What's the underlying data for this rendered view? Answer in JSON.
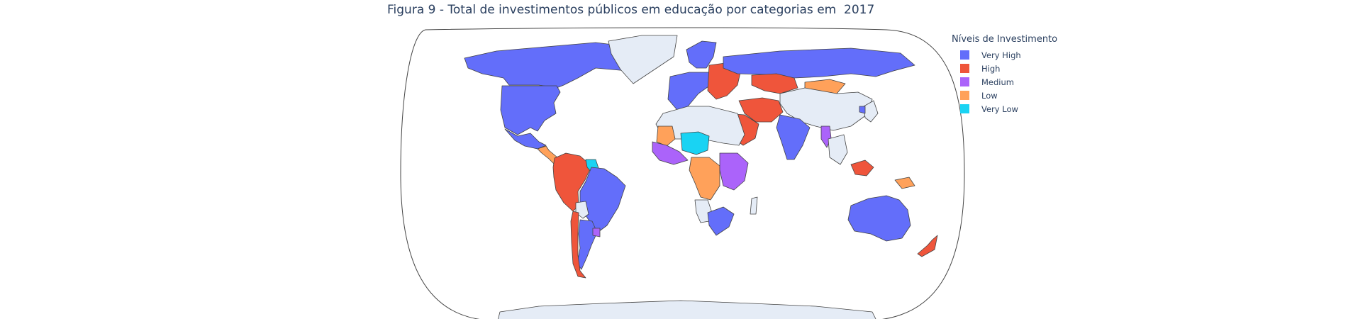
{
  "title": "Figura 9 - Total de investimentos públicos em educação por categorias em  2017",
  "legend": {
    "title": "Níveis de Investimento",
    "items": [
      {
        "label": "Very High",
        "color": "#636efa"
      },
      {
        "label": "High",
        "color": "#ef553b"
      },
      {
        "label": "Medium",
        "color": "#ab63fa"
      },
      {
        "label": "Low",
        "color": "#ffa15a"
      },
      {
        "label": "Very Low",
        "color": "#19d3f3"
      }
    ]
  },
  "colors": {
    "nodata": "#e5ecf6",
    "border": "#444444",
    "title": "#2a3f5f",
    "background": "#ffffff"
  },
  "map": {
    "projection": "natural earth",
    "regions": [
      {
        "name": "Canada / Alaska",
        "category": "Very High"
      },
      {
        "name": "Greenland",
        "category": "none"
      },
      {
        "name": "United States",
        "category": "Very High"
      },
      {
        "name": "Mexico",
        "category": "Very High"
      },
      {
        "name": "Central America",
        "category": "Low"
      },
      {
        "name": "Colombia / Peru / Venezuela",
        "category": "High"
      },
      {
        "name": "Guyana / Suriname",
        "category": "Very Low"
      },
      {
        "name": "Brazil",
        "category": "Very High"
      },
      {
        "name": "Bolivia",
        "category": "none"
      },
      {
        "name": "Argentina",
        "category": "Very High"
      },
      {
        "name": "Chile",
        "category": "High"
      },
      {
        "name": "Uruguay",
        "category": "Medium"
      },
      {
        "name": "Western Europe",
        "category": "Very High"
      },
      {
        "name": "Scandinavia",
        "category": "Very High"
      },
      {
        "name": "Central / Eastern Europe",
        "category": "High"
      },
      {
        "name": "Russia",
        "category": "Very High"
      },
      {
        "name": "Kazakhstan",
        "category": "High"
      },
      {
        "name": "Mongolia",
        "category": "Low"
      },
      {
        "name": "China",
        "category": "none"
      },
      {
        "name": "Iran / Afghanistan",
        "category": "High"
      },
      {
        "name": "Saudi Arabia",
        "category": "High"
      },
      {
        "name": "India",
        "category": "Very High"
      },
      {
        "name": "Myanmar",
        "category": "Medium"
      },
      {
        "name": "Southeast Asia",
        "category": "none"
      },
      {
        "name": "Malaysia",
        "category": "High"
      },
      {
        "name": "Papua New Guinea",
        "category": "Low"
      },
      {
        "name": "Japan",
        "category": "none"
      },
      {
        "name": "Korea",
        "category": "Very High"
      },
      {
        "name": "North Africa",
        "category": "none"
      },
      {
        "name": "Mali / Mauritania",
        "category": "Low"
      },
      {
        "name": "Niger / Chad",
        "category": "Very Low"
      },
      {
        "name": "West Africa",
        "category": "Medium"
      },
      {
        "name": "Central Africa",
        "category": "Low"
      },
      {
        "name": "East Africa",
        "category": "Medium"
      },
      {
        "name": "Angola / Namibia",
        "category": "none"
      },
      {
        "name": "South Africa",
        "category": "Very High"
      },
      {
        "name": "Madagascar",
        "category": "none"
      },
      {
        "name": "Australia",
        "category": "Very High"
      },
      {
        "name": "New Zealand",
        "category": "High"
      },
      {
        "name": "Antarctica",
        "category": "none"
      }
    ]
  }
}
